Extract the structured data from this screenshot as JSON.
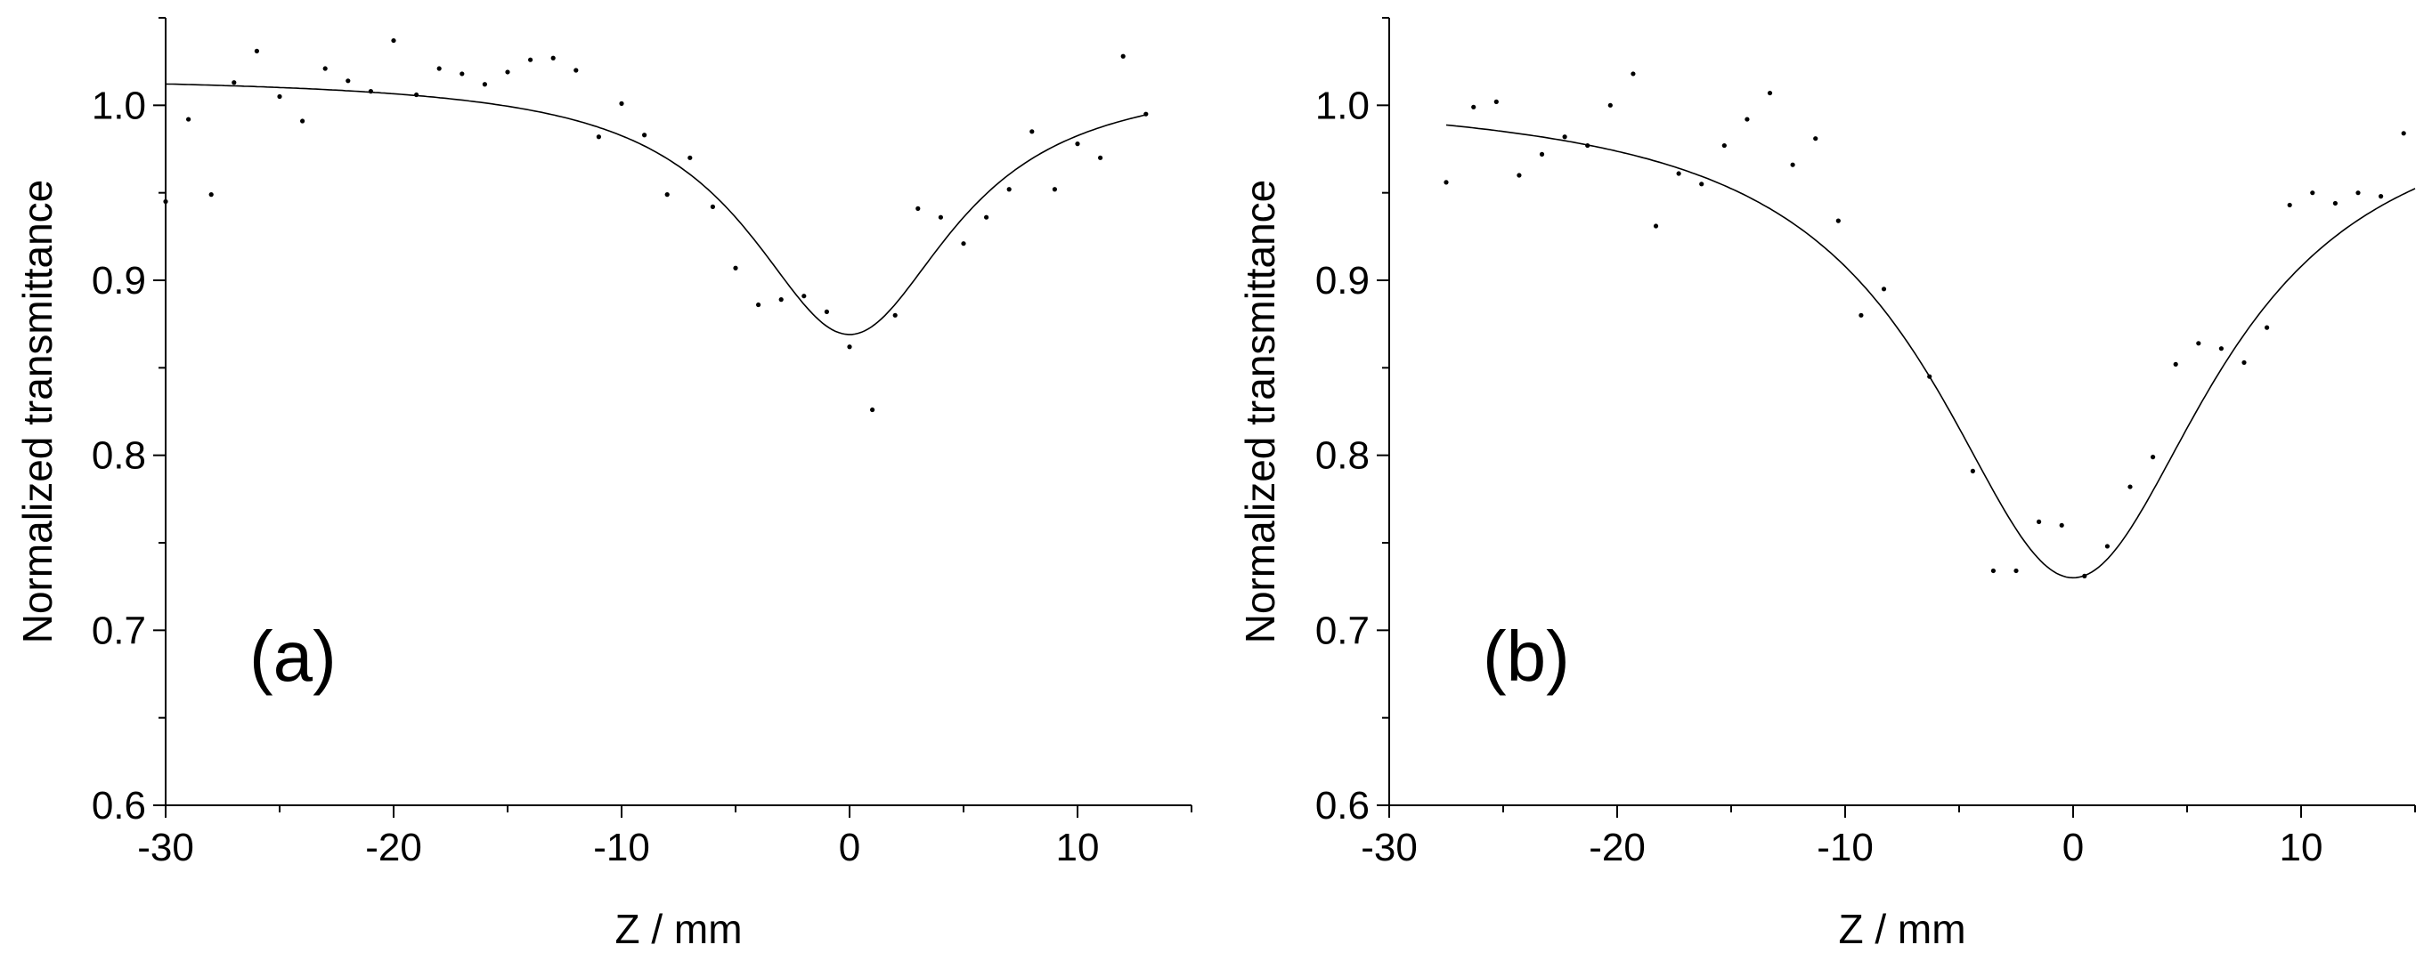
{
  "chart_data": [
    {
      "type": "scatter",
      "panel_label": "(a)",
      "xlabel": "Z / mm",
      "ylabel": "Normalized transmittance",
      "xlim": [
        -30,
        15
      ],
      "ylim": [
        0.6,
        1.05
      ],
      "xticks": [
        -30,
        -20,
        -10,
        0,
        10
      ],
      "xtick_labels": [
        "-30",
        "-20",
        "-10",
        "0",
        "10"
      ],
      "yticks": [
        0.6,
        0.7,
        0.8,
        0.9,
        1.0
      ],
      "ytick_labels": [
        "0.6",
        "0.7",
        "0.8",
        "0.9",
        "1.0"
      ],
      "grid": false,
      "series": [
        {
          "kind": "points",
          "x": [
            -30,
            -29,
            -28,
            -27,
            -26,
            -25,
            -24,
            -23,
            -22,
            -21,
            -20,
            -19,
            -18,
            -17,
            -16,
            -15,
            -14,
            -13,
            -12,
            -11,
            -10,
            -9,
            -8,
            -7,
            -6,
            -5,
            -4,
            -3,
            -2,
            -1,
            0,
            1,
            2,
            3,
            4,
            5,
            6,
            7,
            8,
            9,
            10,
            11,
            12,
            13
          ],
          "y": [
            0.945,
            0.992,
            0.949,
            1.013,
            1.031,
            1.005,
            0.991,
            1.021,
            1.014,
            1.008,
            1.037,
            1.006,
            1.021,
            1.018,
            1.012,
            1.019,
            1.026,
            1.027,
            1.02,
            0.982,
            1.001,
            0.983,
            0.949,
            0.97,
            0.942,
            0.907,
            0.886,
            0.889,
            0.891,
            0.882,
            0.862,
            0.826,
            0.88,
            0.941,
            0.936,
            0.921,
            0.936,
            0.952,
            0.985,
            0.952,
            0.978,
            0.97,
            1.028,
            0.995
          ]
        },
        {
          "kind": "fit",
          "model": "lorentzian-dip",
          "baseline": 1.017,
          "depth": 0.148,
          "center": 0,
          "width": 5.5,
          "xrange": [
            -30,
            13
          ]
        }
      ]
    },
    {
      "type": "scatter",
      "panel_label": "(b)",
      "xlabel": "Z / mm",
      "ylabel": "Normalized transmittance",
      "xlim": [
        -30,
        15
      ],
      "ylim": [
        0.6,
        1.05
      ],
      "xticks": [
        -30,
        -20,
        -10,
        0,
        10
      ],
      "xtick_labels": [
        "-30",
        "-20",
        "-10",
        "0",
        "10"
      ],
      "yticks": [
        0.6,
        0.7,
        0.8,
        0.9,
        1.0
      ],
      "ytick_labels": [
        "0.6",
        "0.7",
        "0.8",
        "0.9",
        "1.0"
      ],
      "grid": false,
      "series": [
        {
          "kind": "points",
          "x": [
            -27.5,
            -26.3,
            -25.3,
            -24.3,
            -23.3,
            -22.3,
            -21.3,
            -20.3,
            -19.3,
            -18.3,
            -17.3,
            -16.3,
            -15.3,
            -14.3,
            -13.3,
            -12.3,
            -11.3,
            -10.3,
            -9.3,
            -8.3,
            -6.3,
            -4.4,
            -3.5,
            -2.5,
            -1.5,
            -0.5,
            0.5,
            1.5,
            2.5,
            3.5,
            4.5,
            5.5,
            6.5,
            7.5,
            8.5,
            9.5,
            10.5,
            11.5,
            12.5,
            13.5,
            14.5
          ],
          "y": [
            0.956,
            0.999,
            1.002,
            0.96,
            0.972,
            0.982,
            0.977,
            1.0,
            1.018,
            0.931,
            0.961,
            0.955,
            0.977,
            0.992,
            1.007,
            0.966,
            0.981,
            0.934,
            0.88,
            0.895,
            0.845,
            0.791,
            0.734,
            0.734,
            0.762,
            0.76,
            0.731,
            0.748,
            0.782,
            0.799,
            0.852,
            0.864,
            0.861,
            0.853,
            0.873,
            0.943,
            0.95,
            0.944,
            0.95,
            0.948,
            0.984
          ]
        },
        {
          "kind": "fit",
          "model": "lorentzian-dip",
          "baseline": 1.008,
          "depth": 0.278,
          "center": 0,
          "width": 7.5,
          "xrange": [
            -27.5,
            15
          ]
        }
      ]
    }
  ]
}
